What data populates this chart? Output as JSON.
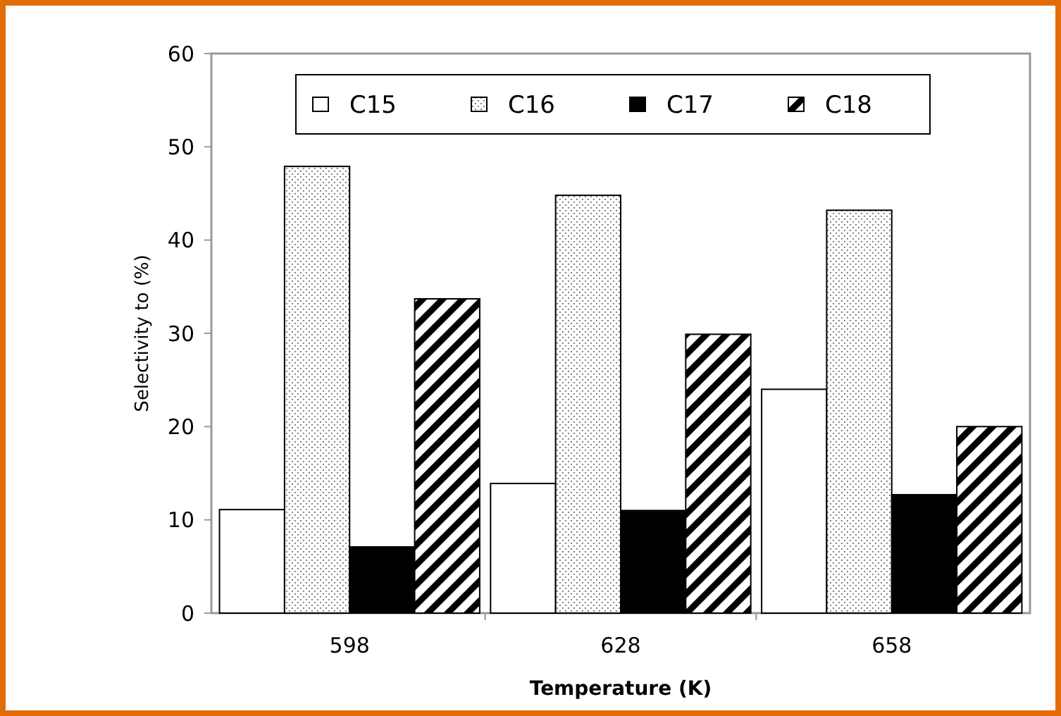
{
  "chart_data": {
    "type": "bar",
    "xlabel": "Temperature (K)",
    "ylabel": "Selectivity to (%)",
    "categories": [
      "598",
      "628",
      "658"
    ],
    "series": [
      {
        "name": "C15",
        "color": "#ffffff",
        "values": [
          11.1,
          13.9,
          24.0
        ]
      },
      {
        "name": "C16",
        "color": "#000000",
        "values": [
          47.9,
          44.8,
          43.2
        ]
      },
      {
        "name": "C17",
        "color": "#000000",
        "values": [
          7.1,
          11.0,
          12.7
        ]
      },
      {
        "name": "C18",
        "color": "#000000",
        "values": [
          33.7,
          29.9,
          20.0
        ]
      }
    ],
    "ylim": [
      0,
      60
    ],
    "yticks": [
      0,
      10,
      20,
      30,
      40,
      50,
      60
    ],
    "grid": false,
    "legend": "top"
  }
}
